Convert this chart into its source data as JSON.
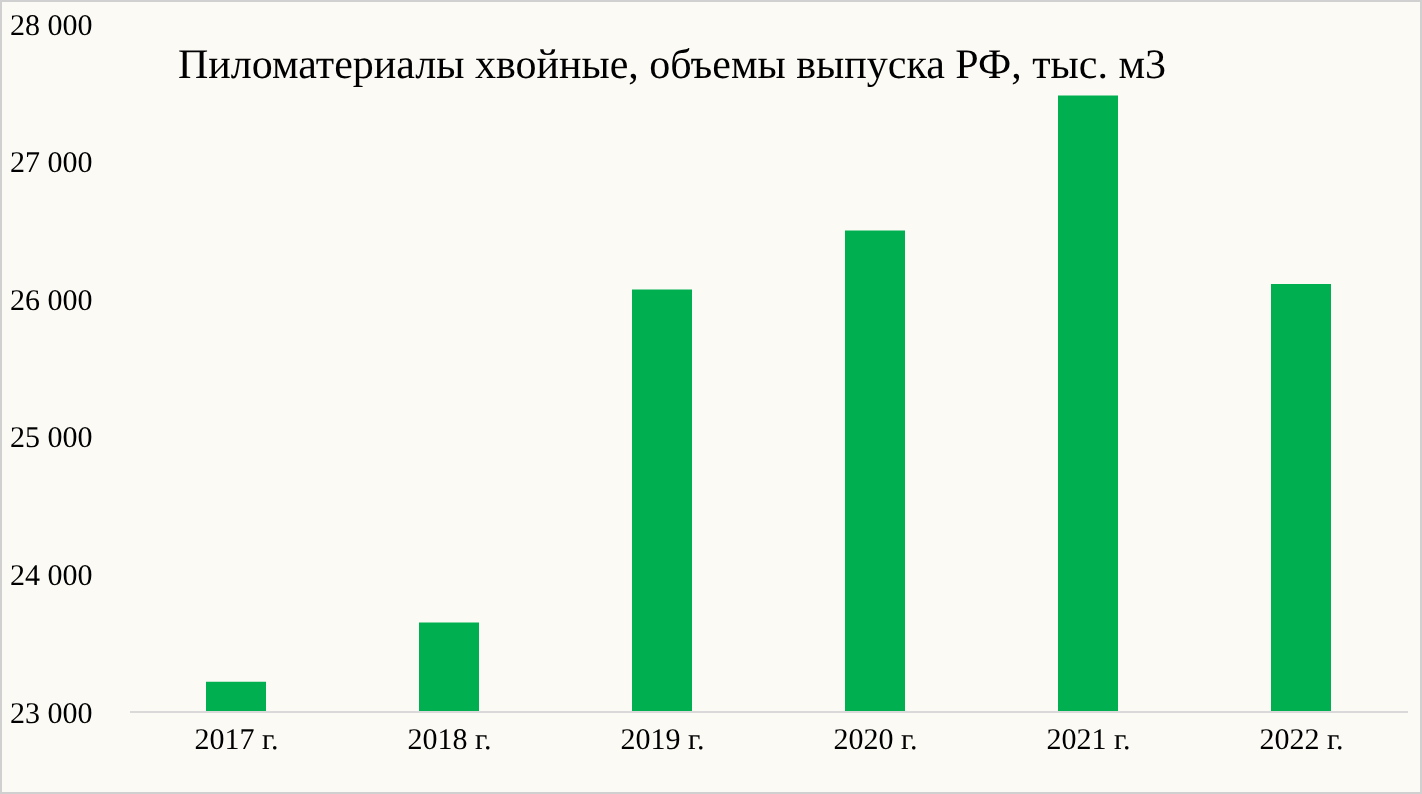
{
  "chart_data": {
    "type": "bar",
    "title": "Пиломатериалы хвойные, объемы выпуска РФ, тыс. м3",
    "categories": [
      "2017 г.",
      "2018 г.",
      "2019 г.",
      "2020 г.",
      "2021 г.",
      "2022 г."
    ],
    "values": [
      23220,
      23650,
      26070,
      26500,
      27480,
      26110
    ],
    "color": "#00b050",
    "ylim": [
      23000,
      28000
    ],
    "yticks": [
      {
        "value": 23000,
        "label": "23 000"
      },
      {
        "value": 24000,
        "label": "24 000"
      },
      {
        "value": 25000,
        "label": "25 000"
      },
      {
        "value": 26000,
        "label": "26 000"
      },
      {
        "value": 27000,
        "label": "27 000"
      },
      {
        "value": 28000,
        "label": "28 000"
      }
    ],
    "grid": false
  }
}
